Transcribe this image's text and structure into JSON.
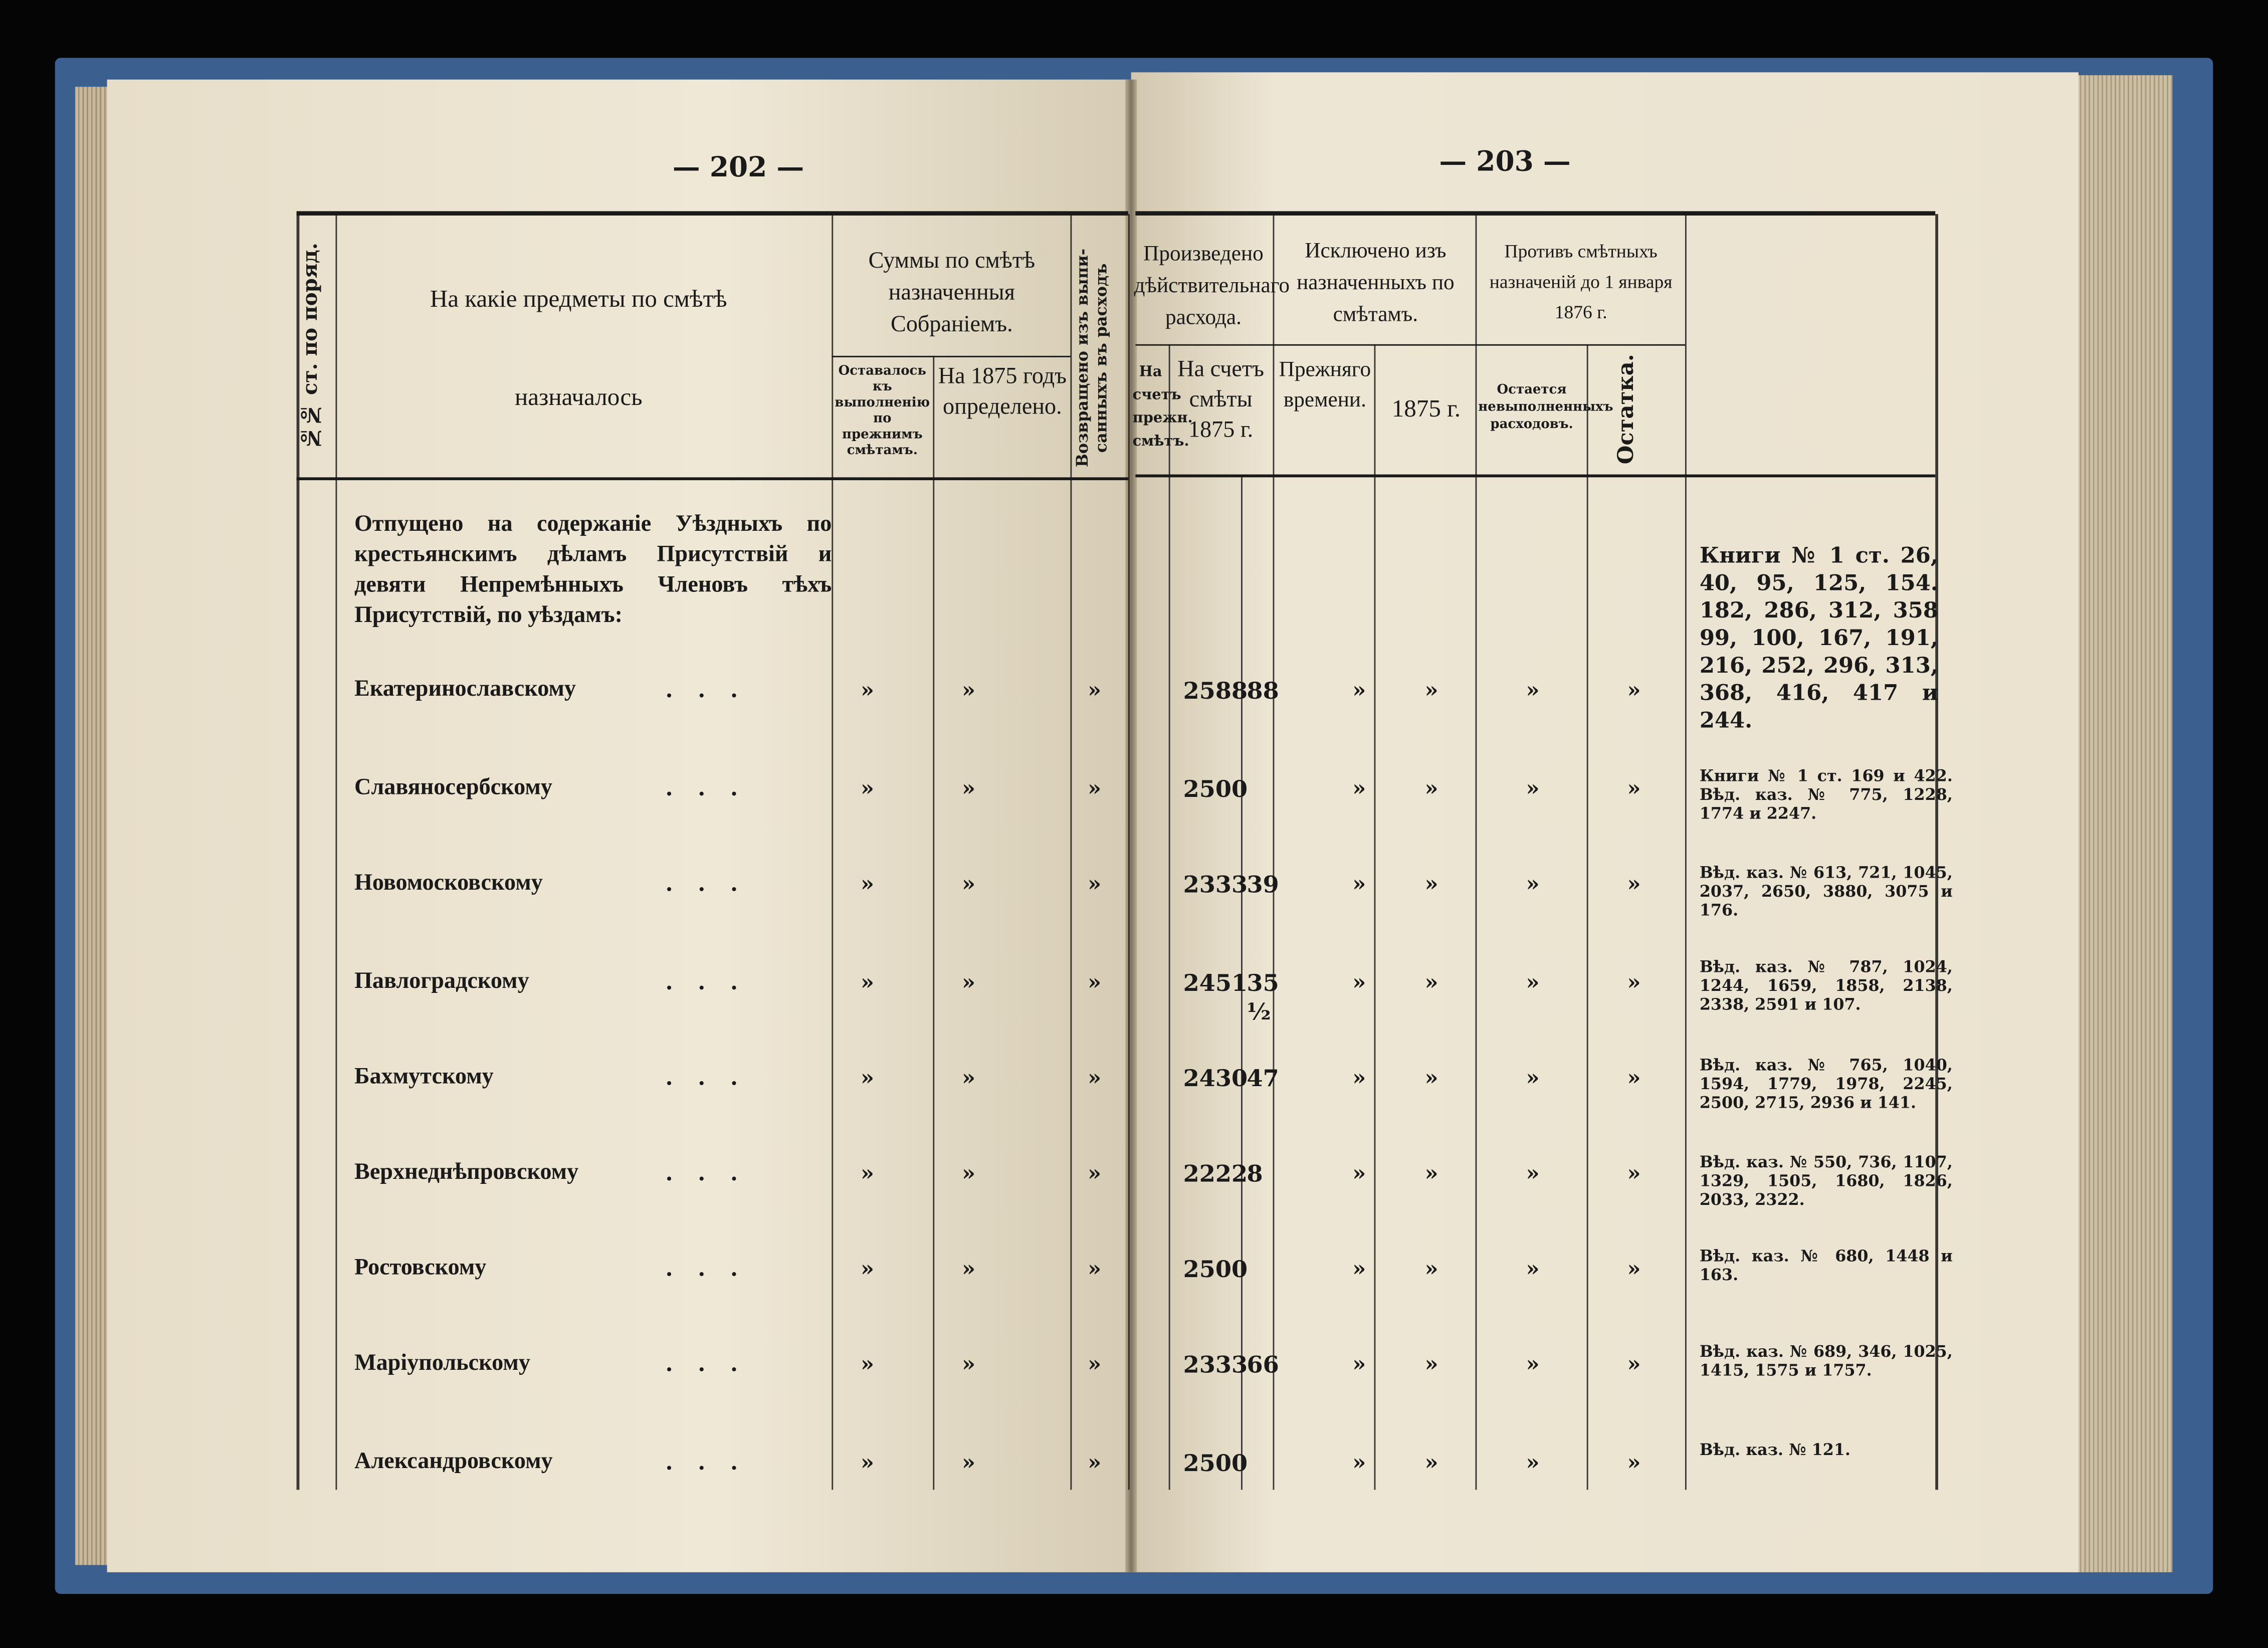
{
  "pages": {
    "left_number": "— 202 —",
    "right_number": "— 203 —"
  },
  "header": {
    "num_col": "№№ ст. по поряд.",
    "subject_top": "На какіе предметы по смѣтѣ",
    "subject_bottom": "назначалось",
    "sums_group": "Суммы по смѣтѣ назначенныя Собраніемъ.",
    "sums_prev": "Оставалось къ выполненію по прежнимъ смѣтамъ.",
    "sums_1875": "На 1875 годъ определено.",
    "returned": "Возвращено изъ выпи-санныхъ въ расходъ",
    "produced_group": "Произведено дѣйствительнаго расхода.",
    "produced_prev": "На счетъ прежн. смѣтъ.",
    "produced_1875": "На счетъ смѣты 1875 г.",
    "excluded_group": "Исключено изъ назначенныхъ по смѣтамъ.",
    "excluded_prev": "Прежняго времени.",
    "excluded_1875": "1875 г.",
    "against_group": "Противъ смѣтныхъ назначеній до 1 января 1876 г.",
    "against_unfulfilled": "Остается невыполненныхъ расходовъ.",
    "against_remainder": "Остатка."
  },
  "intro": "Отпущено на содержаніе Уѣздныхъ по крестьянскимъ дѣламъ Присутствій и девяти Непремѣнныхъ Членовъ тѣхъ Присутствій, по уѣздамъ:",
  "rows": [
    {
      "name": "Екатеринославскому",
      "rub": "2588",
      "kop": "88",
      "note": "Книги № 1 ст. 26, 40, 95, 125, 154. 182, 286, 312, 358 99, 100, 167, 191, 216, 252, 296, 313, 368, 416, 417 и 244."
    },
    {
      "name": "Славяносербскому",
      "rub": "2500",
      "kop": "",
      "note": "Книги № 1 ст. 169 и 422. Вѣд. каз. № 775, 1228, 1774 и 2247."
    },
    {
      "name": "Новомосковскому",
      "rub": "2333",
      "kop": "39",
      "note": "Вѣд. каз. № 613, 721, 1045, 2037, 2650, 3880, 3075 и 176."
    },
    {
      "name": "Павлоградскому",
      "rub": "2451",
      "kop": "35 ½",
      "note": "Вѣд. каз. № 787, 1024, 1244, 1659, 1858, 2138, 2338, 2591 и 107."
    },
    {
      "name": "Бахмутскому",
      "rub": "2430",
      "kop": "47",
      "note": "Вѣд. каз. № 765, 1040, 1594, 1779, 1978, 2245, 2500, 2715, 2936 и 141."
    },
    {
      "name": "Верхнеднѣпровскому",
      "rub": "2222",
      "kop": "8",
      "note": "Вѣд. каз. № 550, 736, 1107, 1329, 1505, 1680, 1826, 2033, 2322."
    },
    {
      "name": "Ростовскому",
      "rub": "2500",
      "kop": "",
      "note": "Вѣд. каз. № 680, 1448 и 163."
    },
    {
      "name": "Маріупольскому",
      "rub": "2333",
      "kop": "66",
      "note": "Вѣд. каз. № 689, 346, 1025, 1415, 1575 и 1757."
    },
    {
      "name": "Александровскому",
      "rub": "2500",
      "kop": "",
      "note": "Вѣд. каз. № 121."
    }
  ],
  "ditto": "»",
  "leader": ".   .   .",
  "colors": {
    "paper": "#ede6d4",
    "cover": "#3b5f8f",
    "ink": "#1a1a1a"
  }
}
